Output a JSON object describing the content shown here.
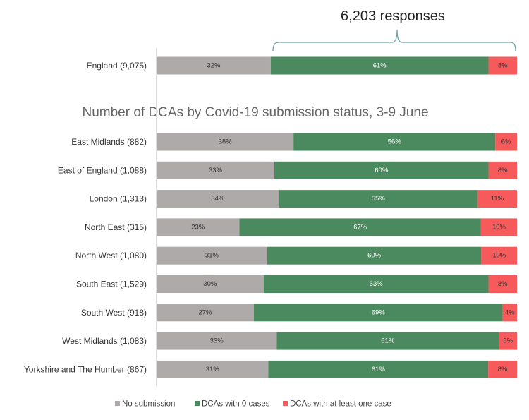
{
  "chart_data": {
    "type": "bar",
    "orientation": "horizontal",
    "stacked": true,
    "annotation": "6,203 responses",
    "title": "Number of DCAs by Covid-19 submission status, 3-9 June",
    "legend_position": "bottom",
    "grid": false,
    "series_names": [
      "No submission",
      "DCAs with 0 cases",
      "DCAs with at least one case"
    ],
    "colors": [
      "#aeaaaa",
      "#4a8a5e",
      "#f75a5b"
    ],
    "total": {
      "category": "England (9,075)",
      "values": [
        32,
        61,
        8
      ],
      "labels": [
        "32%",
        "61%",
        "8%"
      ]
    },
    "categories": [
      "East Midlands (882)",
      "East of England (1,088)",
      "London (1,313)",
      "North East (315)",
      "North West (1,080)",
      "South East (1,529)",
      "South West (918)",
      "West Midlands (1,083)",
      "Yorkshire and The Humber (867)"
    ],
    "values": [
      [
        38,
        56,
        6
      ],
      [
        33,
        60,
        8
      ],
      [
        34,
        55,
        11
      ],
      [
        23,
        67,
        10
      ],
      [
        31,
        60,
        10
      ],
      [
        30,
        63,
        8
      ],
      [
        27,
        69,
        4
      ],
      [
        33,
        61,
        5
      ],
      [
        31,
        61,
        8
      ]
    ],
    "labels": [
      [
        "38%",
        "56%",
        "6%"
      ],
      [
        "33%",
        "60%",
        "8%"
      ],
      [
        "34%",
        "55%",
        "11%"
      ],
      [
        "23%",
        "67%",
        "10%"
      ],
      [
        "31%",
        "60%",
        "10%"
      ],
      [
        "30%",
        "63%",
        "8%"
      ],
      [
        "27%",
        "69%",
        "4%"
      ],
      [
        "33%",
        "61%",
        "5%"
      ],
      [
        "31%",
        "61%",
        "8%"
      ]
    ]
  }
}
